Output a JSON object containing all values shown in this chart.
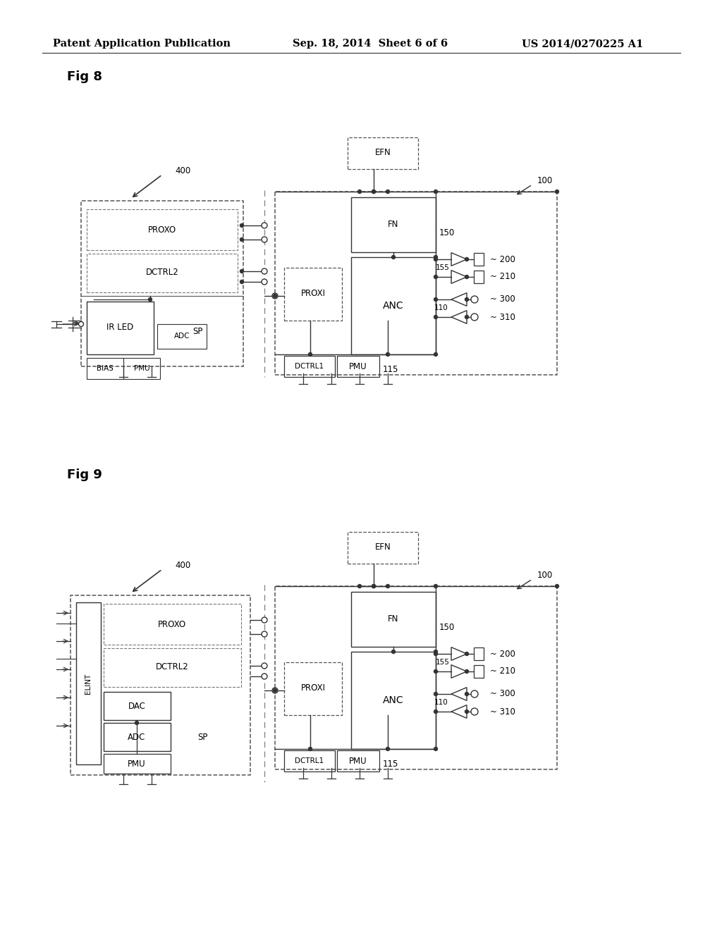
{
  "background_color": "#ffffff",
  "header_left": "Patent Application Publication",
  "header_center": "Sep. 18, 2014  Sheet 6 of 6",
  "header_right": "US 2014/0270225 A1",
  "header_fontsize": 10.5,
  "fig8_title": "Fig 8",
  "fig9_title": "Fig 9",
  "label_fontsize": 8.5,
  "title_fontsize": 13
}
